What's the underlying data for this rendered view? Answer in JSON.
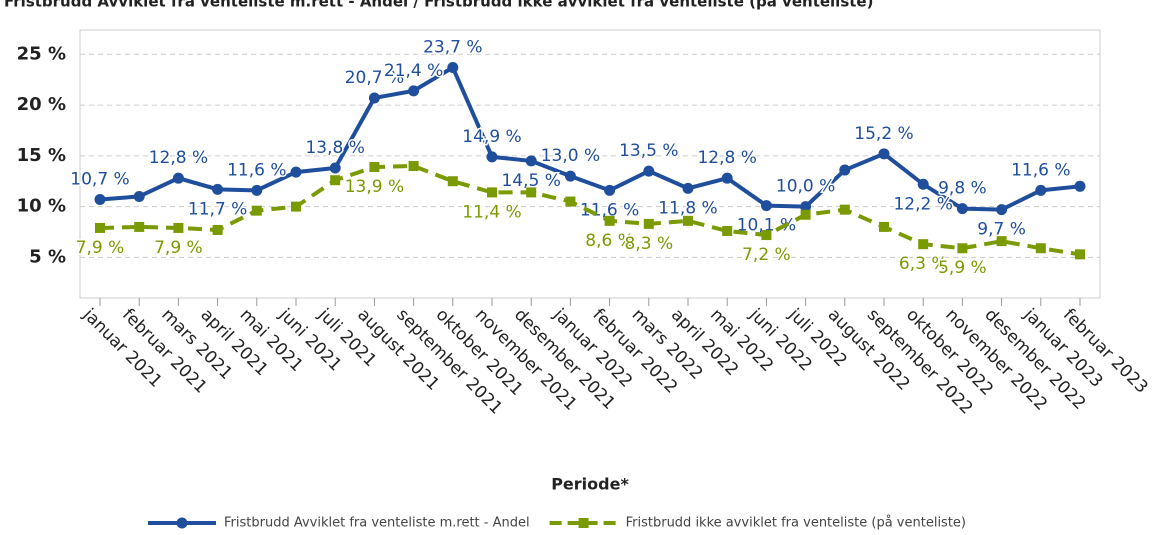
{
  "chart_data": {
    "type": "line",
    "title": "Fristbrudd Avviklet fra venteliste m.rett - Andel / Fristbrudd ikke avviklet fra venteliste (på venteliste)",
    "x_label": "Periode*",
    "categories": [
      "januar 2021",
      "februar 2021",
      "mars 2021",
      "april 2021",
      "mai 2021",
      "juni 2021",
      "juli 2021",
      "august 2021",
      "september 2021",
      "oktober 2021",
      "november 2021",
      "desember 2021",
      "januar 2022",
      "februar 2022",
      "mars 2022",
      "april 2022",
      "mai 2022",
      "juni 2022",
      "juli 2022",
      "august 2022",
      "september 2022",
      "oktober 2022",
      "november 2022",
      "desember 2022",
      "januar 2023",
      "februar 2023"
    ],
    "series": [
      {
        "name": "Fristbrudd Avviklet fra venteliste m.rett - Andel",
        "color": "#1f4e9c",
        "marker": "circle",
        "dash": false,
        "values": [
          10.7,
          11.0,
          12.8,
          11.7,
          11.6,
          13.4,
          13.8,
          20.7,
          21.4,
          23.7,
          14.9,
          14.5,
          13.0,
          11.6,
          13.5,
          11.8,
          12.8,
          10.1,
          10.0,
          13.6,
          15.2,
          12.2,
          9.8,
          9.7,
          11.6,
          12.0
        ],
        "value_labels": [
          "10,7 %",
          null,
          "12,8 %",
          "11,7 %",
          "11,6 %",
          null,
          "13,8 %",
          "20,7 %",
          "21,4 %",
          "23,7 %",
          "14,9 %",
          "14,5 %",
          "13,0 %",
          "11,6 %",
          "13,5 %",
          "11,8 %",
          "12,8 %",
          "10,1 %",
          "10,0 %",
          null,
          "15,2 %",
          "12,2 %",
          "9,8 %",
          "9,7 %",
          "11,6 %",
          null
        ]
      },
      {
        "name": "Fristbrudd ikke avviklet fra venteliste (på venteliste)",
        "color": "#7a9a01",
        "marker": "square",
        "dash": true,
        "values": [
          7.9,
          8.0,
          7.9,
          7.7,
          9.6,
          10.0,
          12.6,
          13.9,
          14.0,
          12.5,
          11.4,
          11.4,
          10.5,
          8.6,
          8.3,
          8.6,
          7.6,
          7.2,
          9.2,
          9.7,
          8.0,
          6.3,
          5.9,
          6.6,
          5.9,
          5.3
        ],
        "value_labels": [
          "7,9 %",
          null,
          "7,9 %",
          null,
          null,
          null,
          null,
          "13,9 %",
          null,
          null,
          "11,4 %",
          null,
          null,
          "8,6 %",
          "8,3 %",
          null,
          null,
          "7,2 %",
          null,
          null,
          null,
          "6,3 %",
          "5,9 %",
          null,
          null,
          null
        ]
      }
    ],
    "ylim": [
      1,
      27
    ],
    "yticks": [
      {
        "value": 5,
        "label": "5 %"
      },
      {
        "value": 10,
        "label": "10 %"
      },
      {
        "value": 15,
        "label": "15 %"
      },
      {
        "value": 20,
        "label": "20 %"
      },
      {
        "value": 25,
        "label": "25 %"
      }
    ],
    "grid": true
  }
}
